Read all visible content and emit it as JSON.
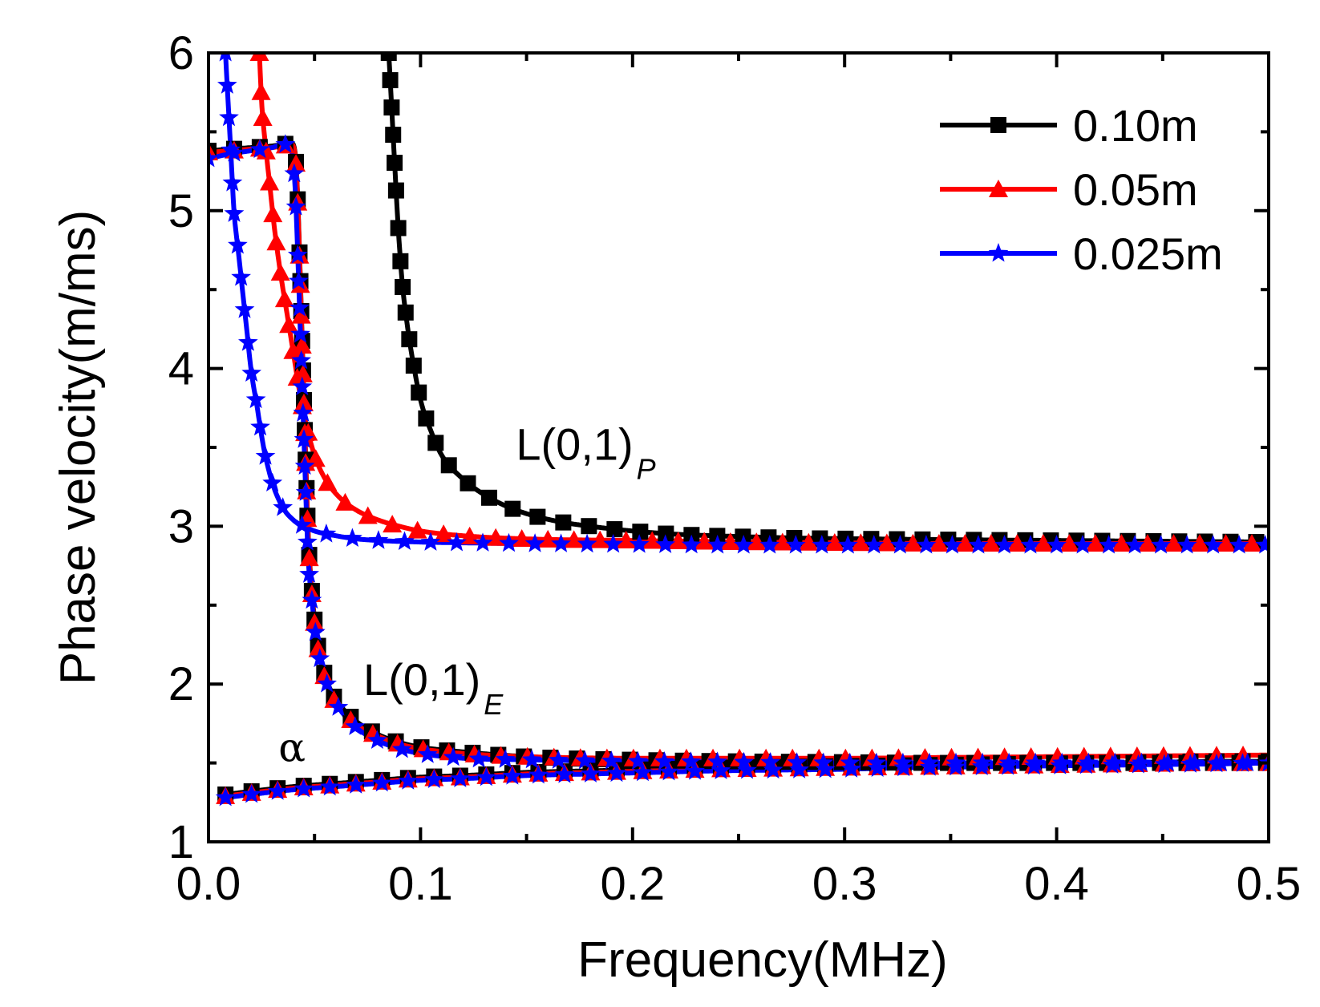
{
  "chart_data": {
    "type": "line",
    "title": "",
    "xlabel": "Frequency(MHz)",
    "ylabel": "Phase velocity(m/ms)",
    "xlim": [
      0.0,
      0.5
    ],
    "ylim": [
      1,
      6
    ],
    "xticks": [
      0.0,
      0.1,
      0.2,
      0.3,
      0.4,
      0.5
    ],
    "xtick_labels": [
      "0.0",
      "0.1",
      "0.2",
      "0.3",
      "0.4",
      "0.5"
    ],
    "yticks": [
      1,
      2,
      3,
      4,
      5,
      6
    ],
    "ytick_labels": [
      "1",
      "2",
      "3",
      "4",
      "5",
      "6"
    ],
    "grid": false,
    "legend_position": "top-right",
    "series": [
      {
        "name": "0.10m",
        "color": "#000000",
        "marker": "square",
        "branches": [
          {
            "label": "alpha",
            "x": [
              0.008,
              0.02,
              0.04,
              0.06,
              0.08,
              0.1,
              0.12,
              0.15,
              0.18,
              0.21,
              0.24,
              0.27,
              0.3,
              0.33,
              0.36,
              0.39,
              0.42,
              0.45,
              0.48,
              0.5
            ],
            "y": [
              1.3,
              1.32,
              1.35,
              1.37,
              1.39,
              1.41,
              1.42,
              1.44,
              1.45,
              1.46,
              1.47,
              1.475,
              1.48,
              1.485,
              1.49,
              1.495,
              1.5,
              1.505,
              1.51,
              1.51
            ]
          },
          {
            "label": "L(0,1)E",
            "x": [
              0.0,
              0.01,
              0.02,
              0.03,
              0.035,
              0.039,
              0.041,
              0.042,
              0.043,
              0.044,
              0.045,
              0.046,
              0.047,
              0.049,
              0.051,
              0.054,
              0.058,
              0.063,
              0.07,
              0.08,
              0.09,
              0.1,
              0.12,
              0.15,
              0.2,
              0.25,
              0.3,
              0.35,
              0.4,
              0.45,
              0.5
            ],
            "y": [
              5.38,
              5.39,
              5.4,
              5.41,
              5.42,
              5.43,
              5.35,
              5.1,
              4.7,
              4.25,
              3.8,
              3.35,
              2.95,
              2.55,
              2.3,
              2.1,
              1.95,
              1.85,
              1.76,
              1.68,
              1.63,
              1.6,
              1.57,
              1.54,
              1.52,
              1.51,
              1.505,
              1.5,
              1.5,
              1.5,
              1.5
            ]
          },
          {
            "label": "L(0,1)P",
            "x": [
              0.085,
              0.087,
              0.089,
              0.091,
              0.094,
              0.097,
              0.1,
              0.105,
              0.11,
              0.12,
              0.13,
              0.14,
              0.15,
              0.165,
              0.18,
              0.2,
              0.22,
              0.25,
              0.28,
              0.31,
              0.35,
              0.4,
              0.45,
              0.5
            ],
            "y": [
              6.0,
              5.5,
              5.0,
              4.6,
              4.25,
              4.0,
              3.8,
              3.6,
              3.45,
              3.3,
              3.2,
              3.13,
              3.08,
              3.03,
              3.0,
              2.97,
              2.95,
              2.935,
              2.925,
              2.92,
              2.915,
              2.91,
              2.905,
              2.9
            ]
          }
        ]
      },
      {
        "name": "0.05m",
        "color": "#ff0000",
        "marker": "triangle",
        "branches": [
          {
            "label": "alpha",
            "x": [
              0.008,
              0.02,
              0.04,
              0.06,
              0.08,
              0.1,
              0.12,
              0.15,
              0.18,
              0.21,
              0.24,
              0.27,
              0.3,
              0.33,
              0.36,
              0.39,
              0.42,
              0.45,
              0.48,
              0.5
            ],
            "y": [
              1.29,
              1.31,
              1.34,
              1.36,
              1.38,
              1.4,
              1.41,
              1.43,
              1.44,
              1.45,
              1.46,
              1.465,
              1.47,
              1.475,
              1.48,
              1.485,
              1.49,
              1.495,
              1.5,
              1.5
            ]
          },
          {
            "label": "L(0,1)E",
            "x": [
              0.0,
              0.01,
              0.02,
              0.03,
              0.035,
              0.039,
              0.041,
              0.042,
              0.043,
              0.044,
              0.045,
              0.046,
              0.047,
              0.049,
              0.051,
              0.054,
              0.058,
              0.063,
              0.07,
              0.08,
              0.09,
              0.1,
              0.12,
              0.15,
              0.2,
              0.25,
              0.3,
              0.35,
              0.4,
              0.45,
              0.5
            ],
            "y": [
              5.37,
              5.38,
              5.39,
              5.4,
              5.41,
              5.42,
              5.34,
              5.08,
              4.68,
              4.22,
              3.78,
              3.33,
              2.93,
              2.53,
              2.28,
              2.08,
              1.93,
              1.83,
              1.74,
              1.67,
              1.62,
              1.59,
              1.56,
              1.54,
              1.53,
              1.53,
              1.53,
              1.535,
              1.54,
              1.545,
              1.55
            ]
          },
          {
            "label": "L(0,1)P",
            "x": [
              0.024,
              0.025,
              0.027,
              0.029,
              0.031,
              0.034,
              0.037,
              0.04,
              0.043,
              0.046,
              0.05,
              0.055,
              0.062,
              0.07,
              0.08,
              0.09,
              0.1,
              0.12,
              0.15,
              0.2,
              0.25,
              0.3,
              0.35,
              0.4,
              0.45,
              0.5
            ],
            "y": [
              6.0,
              5.7,
              5.4,
              5.15,
              4.9,
              4.6,
              4.35,
              4.1,
              3.85,
              3.65,
              3.45,
              3.3,
              3.18,
              3.1,
              3.04,
              3.0,
              2.97,
              2.94,
              2.92,
              2.91,
              2.9,
              2.895,
              2.89,
              2.89,
              2.89,
              2.89
            ]
          }
        ]
      },
      {
        "name": "0.025m",
        "color": "#0000ff",
        "marker": "star",
        "branches": [
          {
            "label": "alpha",
            "x": [
              0.008,
              0.02,
              0.04,
              0.06,
              0.08,
              0.1,
              0.12,
              0.15,
              0.18,
              0.21,
              0.24,
              0.27,
              0.3,
              0.33,
              0.36,
              0.39,
              0.42,
              0.45,
              0.48,
              0.5
            ],
            "y": [
              1.28,
              1.3,
              1.33,
              1.35,
              1.37,
              1.39,
              1.4,
              1.42,
              1.43,
              1.44,
              1.45,
              1.455,
              1.46,
              1.47,
              1.475,
              1.48,
              1.485,
              1.49,
              1.495,
              1.5
            ]
          },
          {
            "label": "L(0,1)E",
            "x": [
              0.0,
              0.01,
              0.02,
              0.03,
              0.035,
              0.038,
              0.04,
              0.041,
              0.042,
              0.043,
              0.044,
              0.045,
              0.046,
              0.047,
              0.049,
              0.051,
              0.054,
              0.058,
              0.063,
              0.07,
              0.08,
              0.09,
              0.1,
              0.12,
              0.15,
              0.2,
              0.25,
              0.3,
              0.35,
              0.4,
              0.45,
              0.5
            ],
            "y": [
              5.33,
              5.36,
              5.38,
              5.4,
              5.42,
              5.41,
              5.3,
              5.1,
              4.75,
              4.35,
              3.95,
              3.55,
              3.15,
              2.8,
              2.5,
              2.27,
              2.08,
              1.93,
              1.82,
              1.72,
              1.64,
              1.59,
              1.56,
              1.53,
              1.52,
              1.51,
              1.505,
              1.5,
              1.5,
              1.5,
              1.5,
              1.5
            ]
          },
          {
            "label": "L(0,1)P",
            "x": [
              0.008,
              0.009,
              0.01,
              0.011,
              0.012,
              0.014,
              0.016,
              0.018,
              0.02,
              0.023,
              0.026,
              0.03,
              0.035,
              0.04,
              0.045,
              0.05,
              0.06,
              0.07,
              0.08,
              0.1,
              0.12,
              0.15,
              0.2,
              0.25,
              0.3,
              0.35,
              0.4,
              0.45,
              0.5
            ],
            "y": [
              6.0,
              5.75,
              5.5,
              5.25,
              5.0,
              4.75,
              4.5,
              4.25,
              4.0,
              3.75,
              3.5,
              3.28,
              3.12,
              3.04,
              3.0,
              2.97,
              2.94,
              2.92,
              2.91,
              2.9,
              2.895,
              2.89,
              2.885,
              2.88,
              2.88,
              2.88,
              2.88,
              2.88,
              2.88
            ]
          }
        ]
      }
    ],
    "annotations": [
      {
        "id": "lp",
        "main": "L(0,1)",
        "sub": "P",
        "x": 0.145,
        "y": 3.42
      },
      {
        "id": "le",
        "main": "L(0,1)",
        "sub": "E",
        "x": 0.073,
        "y": 1.93
      },
      {
        "id": "alpha",
        "main": "α",
        "sub": "",
        "x": 0.033,
        "y": 1.51
      }
    ]
  }
}
